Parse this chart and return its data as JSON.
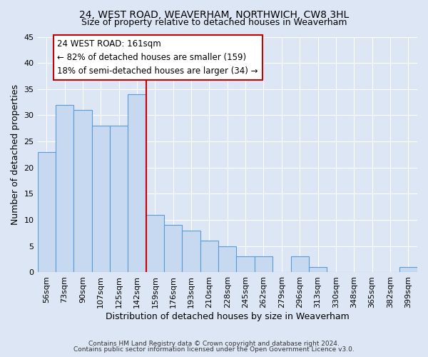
{
  "title": "24, WEST ROAD, WEAVERHAM, NORTHWICH, CW8 3HL",
  "subtitle": "Size of property relative to detached houses in Weaverham",
  "xlabel": "Distribution of detached houses by size in Weaverham",
  "ylabel": "Number of detached properties",
  "categories": [
    "56sqm",
    "73sqm",
    "90sqm",
    "107sqm",
    "125sqm",
    "142sqm",
    "159sqm",
    "176sqm",
    "193sqm",
    "210sqm",
    "228sqm",
    "245sqm",
    "262sqm",
    "279sqm",
    "296sqm",
    "313sqm",
    "330sqm",
    "348sqm",
    "365sqm",
    "382sqm",
    "399sqm"
  ],
  "values": [
    23,
    32,
    31,
    28,
    28,
    34,
    11,
    9,
    8,
    6,
    5,
    3,
    3,
    0,
    3,
    1,
    0,
    0,
    0,
    0,
    1
  ],
  "bar_color": "#c6d9f0",
  "bar_edge_color": "#5b9bd5",
  "vline_x_index": 6,
  "vline_color": "#cc0000",
  "annotation_line1": "24 WEST ROAD: 161sqm",
  "annotation_line2": "← 82% of detached houses are smaller (159)",
  "annotation_line3": "18% of semi-detached houses are larger (34) →",
  "box_edge_color": "#cc0000",
  "box_face_color": "white",
  "ylim": [
    0,
    45
  ],
  "yticks": [
    0,
    5,
    10,
    15,
    20,
    25,
    30,
    35,
    40,
    45
  ],
  "title_fontsize": 10,
  "subtitle_fontsize": 9,
  "xlabel_fontsize": 9,
  "ylabel_fontsize": 9,
  "annotation_fontsize": 8.5,
  "tick_fontsize": 8,
  "footer_line1": "Contains HM Land Registry data © Crown copyright and database right 2024.",
  "footer_line2": "Contains public sector information licensed under the Open Government Licence v3.0.",
  "bg_color": "#dce6f5",
  "plot_bg_color": "#dce6f5",
  "grid_color": "white"
}
